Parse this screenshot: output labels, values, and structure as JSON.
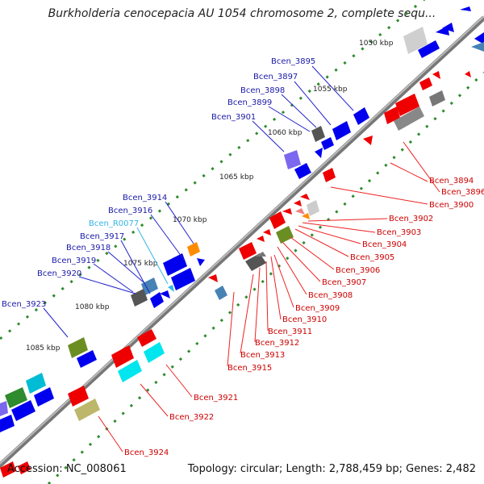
{
  "title": "Burkholderia cenocepacia AU 1054 chromosome 2, complete sequ...",
  "footer": {
    "accession": "Accession: NC_008061",
    "stats": "Topology: circular; Length: 2,788,459 bp; Genes: 2,482"
  },
  "kbp_labels": [
    "1050 kbp",
    "1055 kbp",
    "1060 kbp",
    "1065 kbp",
    "1070 kbp",
    "1075 kbp",
    "1080 kbp",
    "1085 kbp"
  ],
  "forward_labels": [
    "Bcen_3895",
    "Bcen_3897",
    "Bcen_3898",
    "Bcen_3899",
    "Bcen_3901",
    "Bcen_3914",
    "Bcen_3916",
    "Bcen_R0077",
    "Bcen_3917",
    "Bcen_3918",
    "Bcen_3919",
    "Bcen_3920",
    "Bcen_3923"
  ],
  "reverse_labels": [
    "Bcen_3894",
    "Bcen_3896",
    "Bcen_3900",
    "Bcen_3902",
    "Bcen_3903",
    "Bcen_3904",
    "Bcen_3905",
    "Bcen_3906",
    "Bcen_3907",
    "Bcen_3908",
    "Bcen_3909",
    "Bcen_3910",
    "Bcen_3911",
    "Bcen_3912",
    "Bcen_3913",
    "Bcen_3915",
    "Bcen_3921",
    "Bcen_3922",
    "Bcen_3924"
  ],
  "colors": {
    "forward_label": "#1a1aa8",
    "reverse_label": "#cc0000",
    "rna_label": "#33b5e5",
    "backbone": "#8a8a8a",
    "tick": "#2e8b2e"
  }
}
